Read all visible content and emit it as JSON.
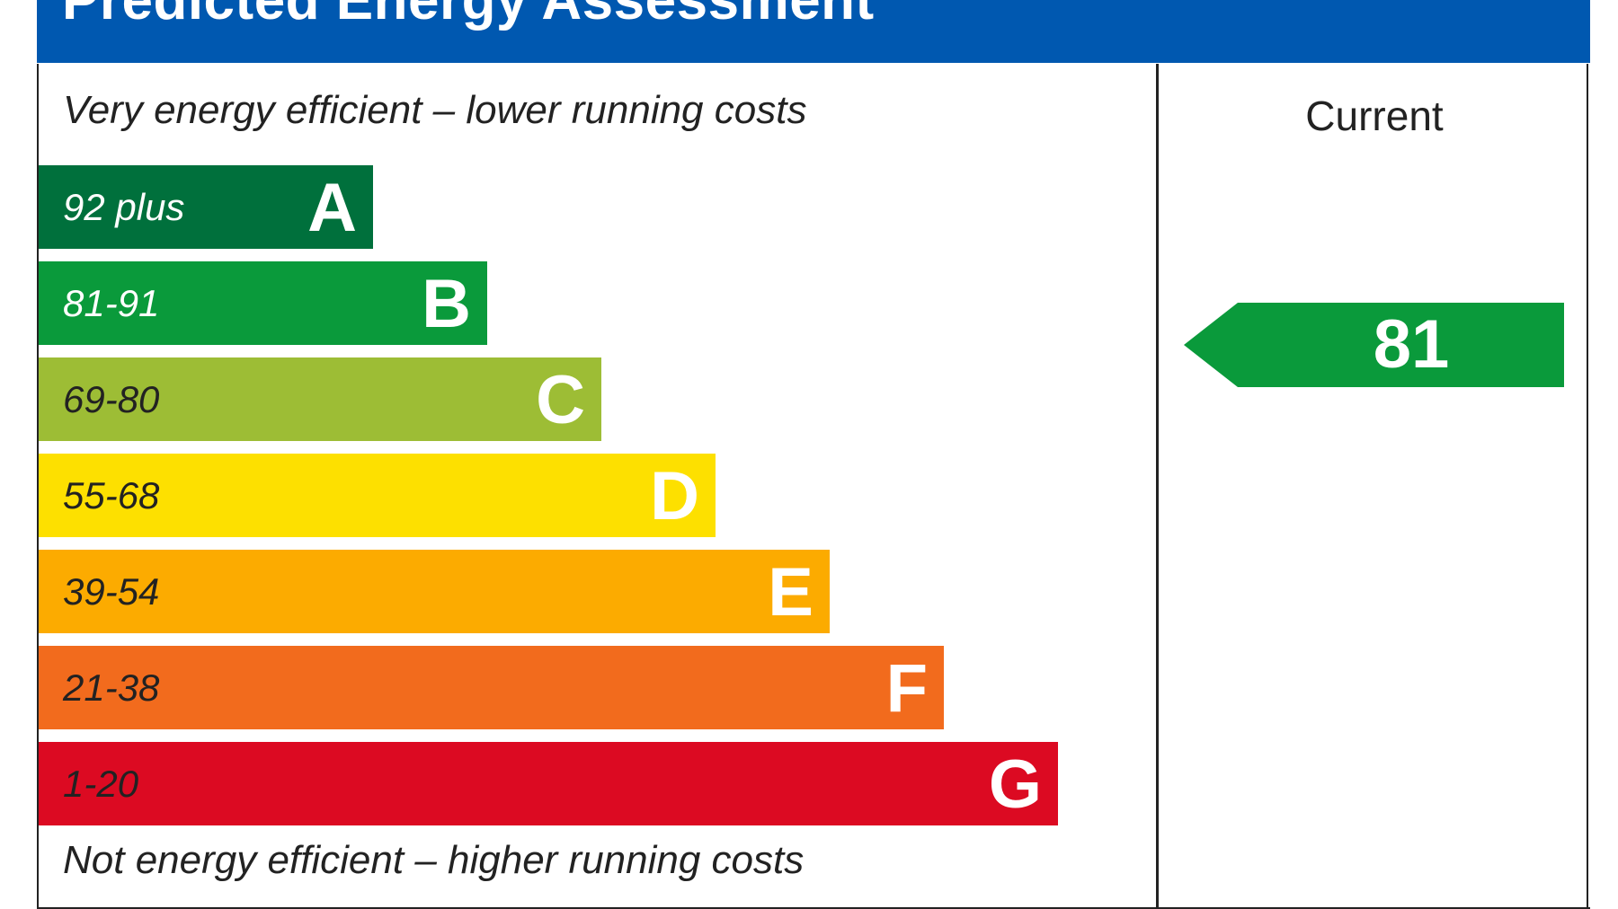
{
  "header": {
    "title": "Predicted Energy Assessment",
    "background": "#0058b0"
  },
  "captions": {
    "top": "Very energy efficient – lower running costs",
    "bottom": "Not energy efficient – higher running costs"
  },
  "chart_data": {
    "type": "bar",
    "categories": [
      "A",
      "B",
      "C",
      "D",
      "E",
      "F",
      "G"
    ],
    "ranges": [
      "92 plus",
      "81-91",
      "69-80",
      "55-68",
      "39-54",
      "21-38",
      "1-20"
    ],
    "colors": [
      "#00703c",
      "#0a9a3b",
      "#9dbd35",
      "#fde000",
      "#fcab00",
      "#f26b1d",
      "#dc0a22"
    ],
    "range_text_colors": [
      "#ffffff",
      "#ffffff",
      "#222222",
      "#222222",
      "#222222",
      "#222222",
      "#222222"
    ],
    "current": {
      "label": "Current",
      "value": 81,
      "color": "#0a9a3b"
    }
  }
}
